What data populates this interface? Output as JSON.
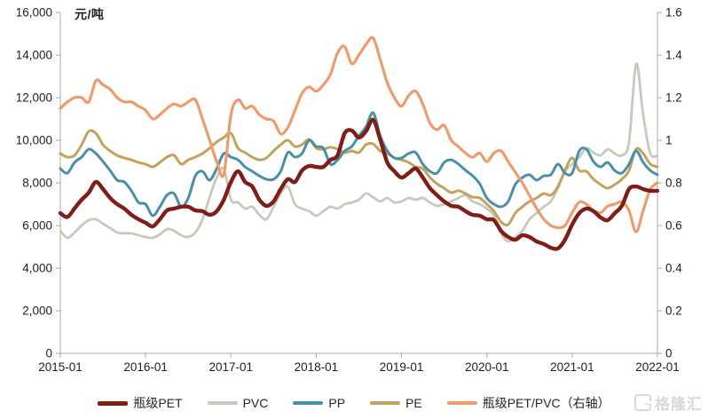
{
  "y_axis_left": {
    "unit_label": "元/吨",
    "tick_labels": [
      "0",
      "2,000",
      "4,000",
      "6,000",
      "8,000",
      "10,000",
      "12,000",
      "14,000",
      "16,000"
    ],
    "tick_values": [
      0,
      2000,
      4000,
      6000,
      8000,
      10000,
      12000,
      14000,
      16000
    ]
  },
  "y_axis_right": {
    "tick_labels": [
      "0",
      "0.2",
      "0.4",
      "0.6",
      "0.8",
      "1",
      "1.2",
      "1.4",
      "1.6"
    ],
    "tick_values": [
      0,
      0.2,
      0.4,
      0.6,
      0.8,
      1,
      1.2,
      1.4,
      1.6
    ]
  },
  "x_axis": {
    "tick_labels": [
      "2015-01",
      "2016-01",
      "2017-01",
      "2018-01",
      "2019-01",
      "2020-01",
      "2021-01",
      "2022-01"
    ]
  },
  "watermark": {
    "text": "格隆汇"
  },
  "chart_data": {
    "type": "line",
    "x_start": "2015-01",
    "x_end": "2022-01",
    "frequency": "monthly",
    "n_points": 85,
    "ylim_left": [
      0,
      16000
    ],
    "ylim_right": [
      0,
      1.6
    ],
    "grid": false,
    "legend_position": "bottom",
    "series": [
      {
        "name": "PVC",
        "axis": "left",
        "color": "#c8c9bc",
        "line_width": 2.8,
        "values": [
          5750,
          5420,
          5670,
          6000,
          6250,
          6290,
          6080,
          5880,
          5670,
          5630,
          5630,
          5540,
          5460,
          5420,
          5580,
          5830,
          5750,
          5540,
          5460,
          5670,
          6290,
          7330,
          8250,
          8670,
          7210,
          7080,
          6790,
          6880,
          6500,
          6290,
          6880,
          7500,
          7830,
          7000,
          6790,
          6670,
          6460,
          6670,
          6880,
          6790,
          7000,
          7080,
          7210,
          7500,
          7330,
          7130,
          7290,
          7080,
          7130,
          7290,
          7210,
          7290,
          7080,
          6920,
          7000,
          7130,
          7290,
          7420,
          7130,
          7000,
          6790,
          6460,
          5620,
          5250,
          5460,
          5750,
          6290,
          6580,
          6880,
          7130,
          7750,
          8540,
          8880,
          9210,
          9630,
          9420,
          9290,
          9580,
          9380,
          9290,
          9920,
          13580,
          11170,
          9380,
          9290
        ]
      },
      {
        "name": "PE",
        "axis": "left",
        "color": "#c2a35d",
        "line_width": 3,
        "values": [
          9380,
          9210,
          9290,
          9790,
          10420,
          10330,
          9790,
          9500,
          9290,
          9170,
          9080,
          8960,
          8880,
          8750,
          8960,
          9210,
          9290,
          8880,
          9080,
          9210,
          9380,
          9630,
          9920,
          10130,
          10330,
          9630,
          9420,
          9210,
          9080,
          9170,
          9500,
          9790,
          10000,
          9710,
          9790,
          10040,
          9630,
          9580,
          9670,
          9580,
          9420,
          9500,
          9420,
          9790,
          9830,
          9500,
          9380,
          9170,
          9080,
          8960,
          8750,
          8670,
          8250,
          7960,
          7750,
          7540,
          7630,
          7500,
          7330,
          7290,
          7000,
          6670,
          6170,
          6040,
          6580,
          6880,
          7130,
          7290,
          7500,
          7420,
          7830,
          8580,
          9170,
          8580,
          8540,
          8170,
          7920,
          7750,
          7920,
          8170,
          8580,
          9580,
          9380,
          8880,
          8750
        ]
      },
      {
        "name": "PP",
        "axis": "left",
        "color": "#4a8fa8",
        "line_width": 3,
        "values": [
          8670,
          8460,
          8960,
          9210,
          9580,
          9380,
          9000,
          8580,
          8130,
          8040,
          7630,
          7080,
          7000,
          6460,
          6880,
          7420,
          7500,
          6880,
          7290,
          8330,
          8540,
          8130,
          8670,
          9380,
          9210,
          9080,
          8750,
          8540,
          8330,
          8170,
          8170,
          8540,
          9420,
          9210,
          9380,
          10000,
          9710,
          9630,
          8880,
          9080,
          9500,
          9710,
          10210,
          10630,
          11290,
          10210,
          9500,
          9170,
          9170,
          9380,
          9420,
          8880,
          8540,
          8460,
          8960,
          9080,
          8880,
          8590,
          8330,
          7960,
          7290,
          7000,
          6880,
          7130,
          7920,
          8250,
          8380,
          8130,
          8330,
          8380,
          8880,
          8460,
          8460,
          9500,
          9580,
          9000,
          8750,
          8960,
          8580,
          8460,
          8880,
          9500,
          8960,
          8580,
          8380
        ]
      },
      {
        "name": "瓶级PET/PVC（右轴）",
        "axis": "right",
        "color": "#ec9c6d",
        "line_width": 3.2,
        "values": [
          1.15,
          1.18,
          1.2,
          1.2,
          1.18,
          1.28,
          1.26,
          1.24,
          1.2,
          1.18,
          1.18,
          1.16,
          1.14,
          1.1,
          1.12,
          1.15,
          1.17,
          1.16,
          1.18,
          1.19,
          1.1,
          1.0,
          0.9,
          0.84,
          1.12,
          1.19,
          1.15,
          1.16,
          1.12,
          1.1,
          1.09,
          1.03,
          1.06,
          1.14,
          1.22,
          1.25,
          1.23,
          1.26,
          1.31,
          1.41,
          1.44,
          1.36,
          1.4,
          1.45,
          1.48,
          1.38,
          1.27,
          1.2,
          1.16,
          1.21,
          1.23,
          1.17,
          1.08,
          1.05,
          1.07,
          1.0,
          0.97,
          0.94,
          0.92,
          0.94,
          0.9,
          0.94,
          0.95,
          0.9,
          0.85,
          0.8,
          0.74,
          0.68,
          0.63,
          0.6,
          0.59,
          0.6,
          0.66,
          0.71,
          0.7,
          0.67,
          0.66,
          0.69,
          0.7,
          0.71,
          0.67,
          0.57,
          0.67,
          0.77,
          0.8
        ]
      },
      {
        "name": "瓶级PET",
        "axis": "left",
        "color": "#7f1d18",
        "line_width": 4.4,
        "values": [
          6580,
          6400,
          6800,
          7210,
          7540,
          8040,
          7710,
          7290,
          7000,
          6790,
          6500,
          6290,
          6130,
          5960,
          6290,
          6710,
          6790,
          6880,
          6880,
          6710,
          6670,
          6500,
          6670,
          7210,
          8040,
          8540,
          8040,
          7830,
          7210,
          6920,
          7130,
          7710,
          8170,
          8040,
          8580,
          8790,
          8750,
          8750,
          9080,
          9290,
          10330,
          10460,
          10130,
          10420,
          10960,
          10040,
          8960,
          8540,
          8250,
          8460,
          8670,
          8250,
          7750,
          7420,
          7130,
          6920,
          6880,
          6670,
          6500,
          6460,
          6290,
          6250,
          5750,
          5460,
          5330,
          5540,
          5460,
          5250,
          5130,
          4960,
          4920,
          5330,
          6040,
          6580,
          6790,
          6670,
          6380,
          6250,
          6580,
          6920,
          7710,
          7830,
          7710,
          7630,
          7630
        ]
      }
    ],
    "legend_order": [
      "瓶级PET",
      "PVC",
      "PP",
      "PE",
      "瓶级PET/PVC（右轴）"
    ]
  }
}
